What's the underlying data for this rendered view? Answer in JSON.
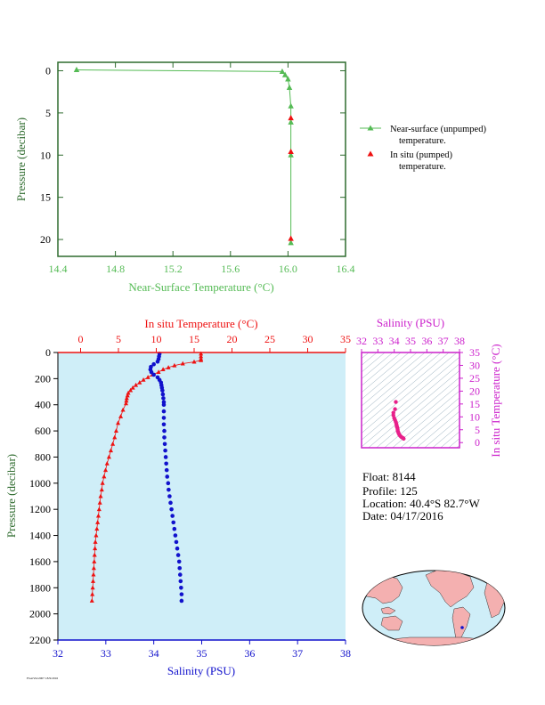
{
  "colors": {
    "green": "#55bb55",
    "red": "#ee1111",
    "blue": "#1111cc",
    "magenta": "#cc22cc",
    "darkgreen": "#2e6b2e",
    "panel_bg": "#cfeef8",
    "land": "#f4b0b0",
    "ocean": "#cfeef8"
  },
  "chart_data": [
    {
      "type": "line",
      "xlabel": "Near-Surface Temperature (°C)",
      "ylabel": "Pressure (decibar)",
      "xlim": [
        14.4,
        16.4
      ],
      "ylim": [
        22,
        -1
      ],
      "x_ticks": [
        "14.4",
        "14.8",
        "15.2",
        "15.6",
        "16.0",
        "16.4"
      ],
      "y_ticks": [
        "0",
        "5",
        "10",
        "15",
        "20"
      ],
      "legend_position": "right",
      "series": [
        {
          "name": "Near-surface (unpumped) temperature.",
          "marker": "triangle",
          "points": [
            [
              14.53,
              -0.1
            ],
            [
              15.96,
              0.1
            ],
            [
              15.98,
              0.5
            ],
            [
              16.0,
              1.0
            ],
            [
              16.01,
              2.0
            ],
            [
              16.02,
              4.2
            ],
            [
              16.02,
              6.1
            ],
            [
              16.02,
              10.0
            ],
            [
              16.02,
              20.4
            ]
          ]
        },
        {
          "name": "In situ (pumped) temperature.",
          "marker": "triangle",
          "points": [
            [
              16.02,
              5.6
            ],
            [
              16.02,
              9.6
            ],
            [
              16.02,
              19.9
            ]
          ]
        }
      ]
    },
    {
      "type": "scatter",
      "title": "In situ Temperature (°C)",
      "xlabel": "Salinity (PSU)",
      "ylabel": "Pressure (decibar)",
      "top_xlim": [
        -3,
        35
      ],
      "top_ticks": [
        "0",
        "5",
        "10",
        "15",
        "20",
        "25",
        "30",
        "35"
      ],
      "bottom_xlim": [
        32,
        38
      ],
      "bottom_ticks": [
        "32",
        "33",
        "34",
        "35",
        "36",
        "37",
        "38"
      ],
      "ylim": [
        2200,
        0
      ],
      "y_ticks": [
        "0",
        "200",
        "400",
        "600",
        "800",
        "1000",
        "1200",
        "1400",
        "1600",
        "1800",
        "2000",
        "2200"
      ],
      "series": [
        {
          "name": "In situ Temperature (°C)",
          "points": [
            [
              15.9,
              10
            ],
            [
              15.9,
              30
            ],
            [
              15.9,
              50
            ],
            [
              15.9,
              60
            ],
            [
              15.0,
              72
            ],
            [
              13.5,
              85
            ],
            [
              12.4,
              100
            ],
            [
              11.6,
              115
            ],
            [
              10.9,
              130
            ],
            [
              10.3,
              150
            ],
            [
              9.5,
              170
            ],
            [
              8.9,
              190
            ],
            [
              8.3,
              210
            ],
            [
              7.8,
              230
            ],
            [
              7.3,
              250
            ],
            [
              6.9,
              270
            ],
            [
              6.6,
              290
            ],
            [
              6.3,
              310
            ],
            [
              6.2,
              330
            ],
            [
              6.1,
              350
            ],
            [
              6.05,
              370
            ],
            [
              6.0,
              390
            ],
            [
              5.6,
              440
            ],
            [
              5.3,
              490
            ],
            [
              4.95,
              540
            ],
            [
              4.7,
              600
            ],
            [
              4.5,
              650
            ],
            [
              4.25,
              700
            ],
            [
              4.0,
              750
            ],
            [
              3.75,
              800
            ],
            [
              3.5,
              850
            ],
            [
              3.3,
              900
            ],
            [
              3.1,
              950
            ],
            [
              2.9,
              1000
            ],
            [
              2.8,
              1050
            ],
            [
              2.65,
              1100
            ],
            [
              2.55,
              1150
            ],
            [
              2.45,
              1200
            ],
            [
              2.35,
              1250
            ],
            [
              2.25,
              1300
            ],
            [
              2.15,
              1350
            ],
            [
              2.05,
              1400
            ],
            [
              1.95,
              1450
            ],
            [
              1.9,
              1500
            ],
            [
              1.85,
              1550
            ],
            [
              1.8,
              1600
            ],
            [
              1.75,
              1650
            ],
            [
              1.7,
              1700
            ],
            [
              1.65,
              1750
            ],
            [
              1.6,
              1800
            ],
            [
              1.55,
              1850
            ],
            [
              1.5,
              1900
            ]
          ]
        },
        {
          "name": "Salinity (PSU)",
          "points": [
            [
              34.12,
              10
            ],
            [
              34.11,
              30
            ],
            [
              34.1,
              50
            ],
            [
              34.08,
              70
            ],
            [
              34.0,
              90
            ],
            [
              33.94,
              110
            ],
            [
              33.93,
              130
            ],
            [
              33.95,
              150
            ],
            [
              34.0,
              170
            ],
            [
              34.08,
              190
            ],
            [
              34.12,
              210
            ],
            [
              34.15,
              230
            ],
            [
              34.16,
              250
            ],
            [
              34.17,
              270
            ],
            [
              34.18,
              290
            ],
            [
              34.19,
              320
            ],
            [
              34.2,
              350
            ],
            [
              34.21,
              380
            ],
            [
              34.21,
              400
            ],
            [
              34.21,
              450
            ],
            [
              34.21,
              500
            ],
            [
              34.21,
              550
            ],
            [
              34.22,
              600
            ],
            [
              34.22,
              650
            ],
            [
              34.23,
              700
            ],
            [
              34.24,
              750
            ],
            [
              34.25,
              800
            ],
            [
              34.26,
              850
            ],
            [
              34.27,
              900
            ],
            [
              34.28,
              950
            ],
            [
              34.3,
              1000
            ],
            [
              34.31,
              1050
            ],
            [
              34.33,
              1100
            ],
            [
              34.35,
              1150
            ],
            [
              34.37,
              1200
            ],
            [
              34.39,
              1250
            ],
            [
              34.41,
              1300
            ],
            [
              34.43,
              1350
            ],
            [
              34.45,
              1400
            ],
            [
              34.47,
              1450
            ],
            [
              34.49,
              1500
            ],
            [
              34.51,
              1550
            ],
            [
              34.53,
              1600
            ],
            [
              34.54,
              1650
            ],
            [
              34.55,
              1700
            ],
            [
              34.56,
              1750
            ],
            [
              34.57,
              1800
            ],
            [
              34.58,
              1850
            ],
            [
              34.58,
              1900
            ]
          ]
        }
      ]
    },
    {
      "type": "scatter",
      "title": "Salinity (PSU)",
      "ylabel": "In situ Temperature (°C)",
      "xlim": [
        32,
        38
      ],
      "x_ticks": [
        "32",
        "33",
        "34",
        "35",
        "36",
        "37",
        "38"
      ],
      "ylim": [
        -2,
        35
      ],
      "y_ticks": [
        "0",
        "5",
        "10",
        "15",
        "20",
        "25",
        "30",
        "35"
      ],
      "points": [
        [
          34.1,
          15.8
        ],
        [
          34.05,
          13.0
        ],
        [
          33.95,
          11.6
        ],
        [
          33.95,
          10.6
        ],
        [
          34.0,
          9.5
        ],
        [
          34.05,
          8.8
        ],
        [
          34.1,
          8.0
        ],
        [
          34.13,
          7.3
        ],
        [
          34.15,
          6.7
        ],
        [
          34.16,
          6.2
        ],
        [
          34.18,
          6.0
        ],
        [
          34.2,
          5.6
        ],
        [
          34.21,
          5.0
        ],
        [
          34.22,
          4.5
        ],
        [
          34.25,
          4.0
        ],
        [
          34.28,
          3.5
        ],
        [
          34.32,
          3.0
        ],
        [
          34.37,
          2.6
        ],
        [
          34.43,
          2.2
        ],
        [
          34.5,
          1.9
        ],
        [
          34.56,
          1.7
        ],
        [
          34.58,
          1.5
        ]
      ]
    }
  ],
  "info": {
    "float": "Float:  8144",
    "profile": "Profile:  125",
    "location": "Location:  40.4°S  82.7°W",
    "date": "Date:  04/17/2016"
  },
  "footer": "FloatViz/2007 18/9/2016"
}
